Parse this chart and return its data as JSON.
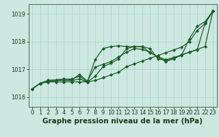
{
  "title": "Graphe pression niveau de la mer (hPa)",
  "bg_color": "#cce8e0",
  "grid_color": "#b0d4cc",
  "line_color": "#1a5c28",
  "x_ticks": [
    0,
    1,
    2,
    3,
    4,
    5,
    6,
    7,
    8,
    9,
    10,
    11,
    12,
    13,
    14,
    15,
    16,
    17,
    18,
    19,
    20,
    21,
    22,
    23
  ],
  "y_ticks": [
    1016,
    1017,
    1018,
    1019
  ],
  "ylim": [
    1015.65,
    1019.35
  ],
  "xlim": [
    -0.5,
    23.5
  ],
  "series": [
    [
      1016.3,
      1016.5,
      1016.55,
      1016.55,
      1016.55,
      1016.55,
      1016.55,
      1016.55,
      1016.6,
      1016.7,
      1016.8,
      1016.9,
      1017.1,
      1017.2,
      1017.3,
      1017.4,
      1017.5,
      1017.6,
      1017.7,
      1017.8,
      1018.0,
      1018.4,
      1018.65,
      1019.1
    ],
    [
      1016.3,
      1016.5,
      1016.55,
      1016.6,
      1016.6,
      1016.6,
      1016.65,
      1016.55,
      1017.35,
      1017.75,
      1017.82,
      1017.85,
      1017.82,
      1017.82,
      1017.82,
      1017.75,
      1017.38,
      1017.32,
      1017.42,
      1017.52,
      1017.62,
      1017.7,
      1018.65,
      1019.1
    ],
    [
      1016.3,
      1016.5,
      1016.6,
      1016.62,
      1016.65,
      1016.65,
      1016.75,
      1016.55,
      1016.75,
      1017.1,
      1017.22,
      1017.38,
      1017.75,
      1017.82,
      1017.82,
      1017.6,
      1017.45,
      1017.35,
      1017.42,
      1017.5,
      1018.1,
      1018.55,
      1018.72,
      1019.1
    ],
    [
      1016.3,
      1016.5,
      1016.6,
      1016.62,
      1016.65,
      1016.62,
      1016.82,
      1016.58,
      1017.08,
      1017.18,
      1017.28,
      1017.45,
      1017.62,
      1017.75,
      1017.72,
      1017.62,
      1017.45,
      1017.28,
      1017.38,
      1017.52,
      1017.62,
      1017.72,
      1017.82,
      1019.1
    ]
  ],
  "marker": "D",
  "marker_size": 2.2,
  "linewidth": 0.9,
  "title_fontsize": 7.5,
  "tick_fontsize": 6.0,
  "figsize": [
    3.2,
    2.0
  ],
  "dpi": 100
}
